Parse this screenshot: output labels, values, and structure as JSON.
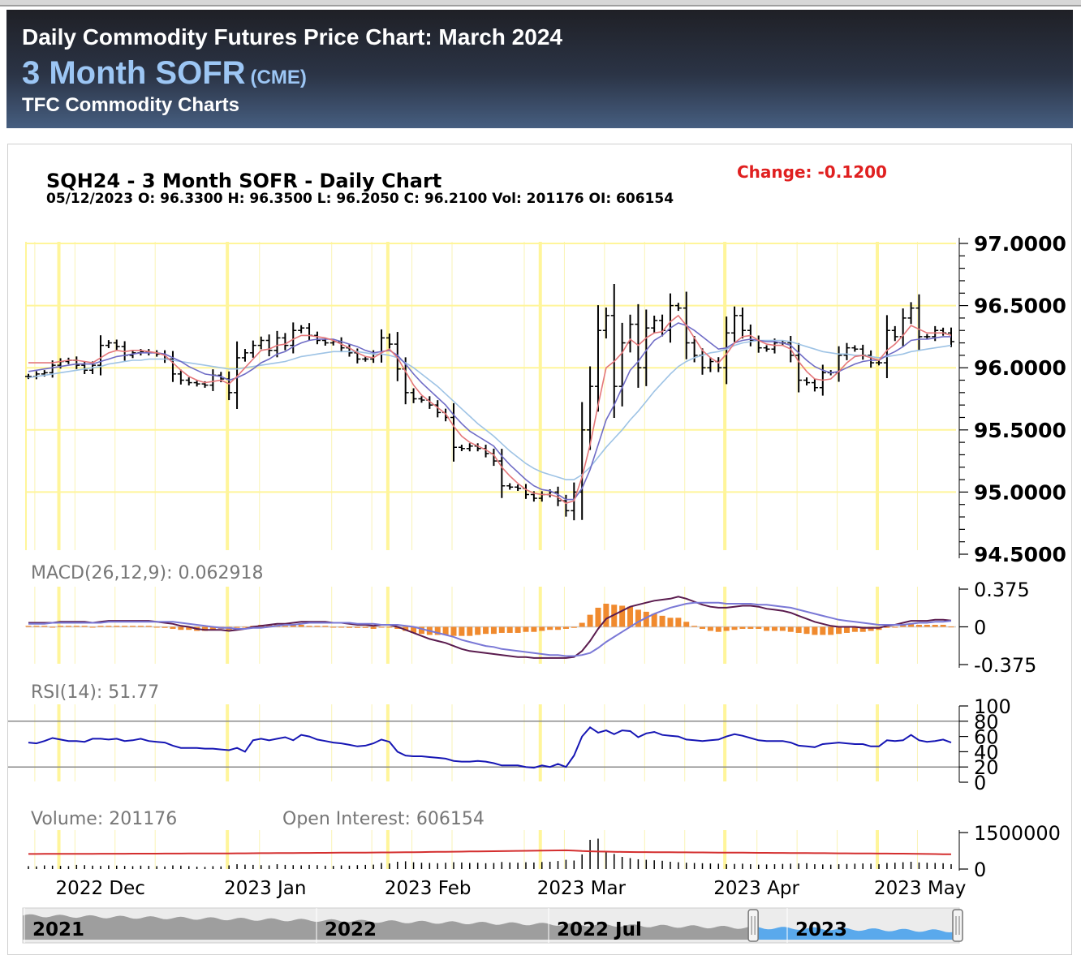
{
  "header": {
    "title": "Daily Commodity Futures Price Chart: March 2024",
    "contract": "3 Month SOFR",
    "exchange": "(CME)",
    "brand": "TFC Commodity Charts"
  },
  "chart_info": {
    "title": "SQH24 - 3 Month SOFR - Daily Chart",
    "change": "Change: -0.1200",
    "ohlc_line": "05/12/2023 O: 96.3300 H: 96.3500 L: 96.2050 C: 96.2100 Vol: 201176 OI: 606154"
  },
  "colors": {
    "bars": "#000000",
    "ma_fast": "#e4777a",
    "ma_mid": "#6f6cc6",
    "ma_slow": "#9ec3e5",
    "macd_line": "#5a1b4e",
    "signal_line": "#7a78d6",
    "histogram": "#f08a2e",
    "rsi_line": "#1616b4",
    "grid_major": "#fff59a",
    "change": "#e02020",
    "navigator_fill": "#9e9e9e",
    "navigator_selected": "#5aa9ec"
  },
  "chart_data": {
    "type": "bar",
    "dates": [
      "2022-11-25",
      "2022-11-28",
      "2022-11-29",
      "2022-11-30",
      "2022-12-01",
      "2022-12-02",
      "2022-12-05",
      "2022-12-06",
      "2022-12-07",
      "2022-12-08",
      "2022-12-09",
      "2022-12-12",
      "2022-12-13",
      "2022-12-14",
      "2022-12-15",
      "2022-12-16",
      "2022-12-19",
      "2022-12-20",
      "2022-12-21",
      "2022-12-22",
      "2022-12-23",
      "2022-12-27",
      "2022-12-28",
      "2022-12-29",
      "2022-12-30",
      "2023-01-03",
      "2023-01-04",
      "2023-01-05",
      "2023-01-06",
      "2023-01-09",
      "2023-01-10",
      "2023-01-11",
      "2023-01-12",
      "2023-01-13",
      "2023-01-17",
      "2023-01-18",
      "2023-01-19",
      "2023-01-20",
      "2023-01-23",
      "2023-01-24",
      "2023-01-25",
      "2023-01-26",
      "2023-01-27",
      "2023-01-30",
      "2023-01-31",
      "2023-02-01",
      "2023-02-02",
      "2023-02-03",
      "2023-02-06",
      "2023-02-07",
      "2023-02-08",
      "2023-02-09",
      "2023-02-10",
      "2023-02-13",
      "2023-02-14",
      "2023-02-15",
      "2023-02-16",
      "2023-02-17",
      "2023-02-21",
      "2023-02-22",
      "2023-02-23",
      "2023-02-24",
      "2023-02-27",
      "2023-02-28",
      "2023-03-01",
      "2023-03-02",
      "2023-03-03",
      "2023-03-06",
      "2023-03-07",
      "2023-03-08",
      "2023-03-09",
      "2023-03-10",
      "2023-03-13",
      "2023-03-14",
      "2023-03-15",
      "2023-03-16",
      "2023-03-17",
      "2023-03-20",
      "2023-03-21",
      "2023-03-22",
      "2023-03-23",
      "2023-03-24",
      "2023-03-27",
      "2023-03-28",
      "2023-03-29",
      "2023-03-30",
      "2023-03-31",
      "2023-04-03",
      "2023-04-04",
      "2023-04-05",
      "2023-04-06",
      "2023-04-10",
      "2023-04-11",
      "2023-04-12",
      "2023-04-13",
      "2023-04-14",
      "2023-04-17",
      "2023-04-18",
      "2023-04-19",
      "2023-04-20",
      "2023-04-21",
      "2023-04-24",
      "2023-04-25",
      "2023-04-26",
      "2023-04-27",
      "2023-04-28",
      "2023-05-01",
      "2023-05-02",
      "2023-05-03",
      "2023-05-04",
      "2023-05-05",
      "2023-05-08",
      "2023-05-09",
      "2023-05-10",
      "2023-05-11",
      "2023-05-12"
    ],
    "close": [
      95.93,
      95.95,
      95.96,
      96.02,
      96.05,
      96.06,
      96.02,
      95.98,
      96.02,
      96.18,
      96.2,
      96.17,
      96.1,
      96.12,
      96.13,
      96.12,
      96.11,
      96.07,
      95.95,
      95.9,
      95.88,
      95.87,
      95.86,
      95.94,
      95.91,
      95.8,
      96.08,
      96.12,
      96.18,
      96.22,
      96.14,
      96.24,
      96.18,
      96.3,
      96.32,
      96.26,
      96.22,
      96.2,
      96.21,
      96.16,
      96.12,
      96.07,
      96.07,
      96.11,
      96.24,
      96.19,
      95.99,
      95.8,
      95.75,
      95.74,
      95.7,
      95.64,
      95.6,
      95.36,
      95.35,
      95.37,
      95.35,
      95.31,
      95.25,
      95.05,
      95.04,
      95.03,
      94.98,
      94.95,
      94.98,
      95.0,
      94.93,
      94.85,
      95.0,
      95.5,
      95.85,
      96.3,
      96.42,
      95.85,
      96.2,
      96.35,
      96.0,
      96.32,
      96.38,
      96.3,
      96.5,
      96.48,
      96.2,
      96.1,
      96.0,
      96.05,
      96.0,
      96.28,
      96.42,
      96.3,
      96.22,
      96.16,
      96.15,
      96.2,
      96.2,
      96.1,
      95.9,
      95.88,
      95.84,
      95.96,
      95.96,
      96.1,
      96.16,
      96.15,
      96.1,
      96.04,
      96.04,
      96.3,
      96.25,
      96.4,
      96.48,
      96.25,
      96.25,
      96.3,
      96.28,
      96.21
    ],
    "ma_fast": [
      96.04,
      96.04,
      96.04,
      96.04,
      96.05,
      96.06,
      96.06,
      96.05,
      96.04,
      96.08,
      96.12,
      96.14,
      96.13,
      96.14,
      96.14,
      96.13,
      96.12,
      96.1,
      96.04,
      95.98,
      95.93,
      95.9,
      95.88,
      95.89,
      95.9,
      95.87,
      95.93,
      96.0,
      96.07,
      96.14,
      96.15,
      96.18,
      96.19,
      96.23,
      96.26,
      96.26,
      96.25,
      96.24,
      96.22,
      96.19,
      96.16,
      96.12,
      96.09,
      96.08,
      96.12,
      96.15,
      96.08,
      95.97,
      95.86,
      95.78,
      95.73,
      95.68,
      95.63,
      95.53,
      95.45,
      95.4,
      95.37,
      95.34,
      95.3,
      95.2,
      95.13,
      95.07,
      95.02,
      94.99,
      94.98,
      94.98,
      94.96,
      94.91,
      94.93,
      95.12,
      95.38,
      95.7,
      96.0,
      96.05,
      96.12,
      96.23,
      96.18,
      96.24,
      96.28,
      96.29,
      96.37,
      96.42,
      96.34,
      96.24,
      96.14,
      96.08,
      96.04,
      96.11,
      96.2,
      96.25,
      96.26,
      96.22,
      96.19,
      96.18,
      96.18,
      96.15,
      96.05,
      95.97,
      95.91,
      95.9,
      95.91,
      95.97,
      96.04,
      96.09,
      96.1,
      96.08,
      96.06,
      96.14,
      96.19,
      96.26,
      96.34,
      96.31,
      96.28,
      96.28,
      96.28,
      96.26
    ],
    "ma_mid": [
      95.97,
      95.98,
      95.99,
      96.0,
      96.01,
      96.02,
      96.03,
      96.03,
      96.03,
      96.05,
      96.07,
      96.09,
      96.1,
      96.11,
      96.12,
      96.12,
      96.12,
      96.11,
      96.08,
      96.05,
      96.01,
      95.98,
      95.95,
      95.94,
      95.93,
      95.9,
      95.92,
      95.95,
      95.99,
      96.04,
      96.07,
      96.11,
      96.13,
      96.17,
      96.2,
      96.22,
      96.23,
      96.23,
      96.23,
      96.21,
      96.19,
      96.17,
      96.14,
      96.12,
      96.13,
      96.14,
      96.1,
      96.03,
      95.95,
      95.88,
      95.82,
      95.76,
      95.7,
      95.62,
      95.55,
      95.49,
      95.45,
      95.41,
      95.37,
      95.29,
      95.22,
      95.16,
      95.1,
      95.05,
      95.02,
      95.01,
      94.98,
      94.94,
      94.94,
      95.03,
      95.18,
      95.38,
      95.58,
      95.7,
      95.84,
      95.98,
      96.05,
      96.14,
      96.22,
      96.26,
      96.32,
      96.36,
      96.34,
      96.3,
      96.25,
      96.2,
      96.15,
      96.16,
      96.2,
      96.22,
      96.23,
      96.22,
      96.21,
      96.21,
      96.2,
      96.18,
      96.12,
      96.06,
      96.01,
      95.98,
      95.96,
      95.97,
      96.0,
      96.03,
      96.05,
      96.06,
      96.06,
      96.1,
      96.13,
      96.17,
      96.22,
      96.23,
      96.23,
      96.24,
      96.25,
      96.25
    ],
    "ma_slow": [
      95.92,
      95.93,
      95.94,
      95.95,
      95.96,
      95.97,
      95.98,
      95.99,
      96.0,
      96.01,
      96.03,
      96.04,
      96.05,
      96.06,
      96.06,
      96.07,
      96.07,
      96.07,
      96.06,
      96.05,
      96.04,
      96.03,
      96.02,
      96.01,
      96.0,
      95.99,
      95.99,
      96.0,
      96.01,
      96.02,
      96.03,
      96.04,
      96.05,
      96.07,
      96.09,
      96.1,
      96.11,
      96.12,
      96.13,
      96.13,
      96.13,
      96.13,
      96.12,
      96.11,
      96.11,
      96.1,
      96.08,
      96.04,
      96.0,
      95.95,
      95.9,
      95.85,
      95.79,
      95.73,
      95.67,
      95.61,
      95.55,
      95.5,
      95.45,
      95.39,
      95.33,
      95.28,
      95.23,
      95.19,
      95.16,
      95.14,
      95.12,
      95.1,
      95.1,
      95.14,
      95.2,
      95.28,
      95.36,
      95.43,
      95.5,
      95.58,
      95.65,
      95.73,
      95.81,
      95.88,
      95.95,
      96.01,
      96.05,
      96.08,
      96.1,
      96.12,
      96.13,
      96.15,
      96.18,
      96.2,
      96.21,
      96.22,
      96.22,
      96.22,
      96.22,
      96.21,
      96.19,
      96.17,
      96.15,
      96.13,
      96.12,
      96.11,
      96.11,
      96.1,
      96.1,
      96.09,
      96.08,
      96.09,
      96.1,
      96.11,
      96.13,
      96.14,
      96.15,
      96.16,
      96.17,
      96.18
    ],
    "price_axis": {
      "min": 94.5,
      "max": 97.0,
      "ticks": [
        "97.0000",
        "96.5000",
        "96.0000",
        "95.5000",
        "95.0000",
        "94.5000"
      ]
    },
    "x_labels": [
      "2022 Dec",
      "2023 Jan",
      "2023 Feb",
      "2023 Mar",
      "2023 Apr",
      "2023 May"
    ],
    "macd": {
      "label": "MACD(26,12,9): 0.062918",
      "ticks": [
        "0.375",
        "0",
        "-0.375"
      ],
      "range": [
        -0.375,
        0.375
      ],
      "macd": [
        0.04,
        0.04,
        0.04,
        0.04,
        0.05,
        0.05,
        0.05,
        0.05,
        0.04,
        0.05,
        0.06,
        0.06,
        0.06,
        0.06,
        0.06,
        0.06,
        0.05,
        0.04,
        0.03,
        0.01,
        0.0,
        -0.02,
        -0.03,
        -0.03,
        -0.03,
        -0.04,
        -0.03,
        -0.02,
        0.0,
        0.01,
        0.02,
        0.03,
        0.03,
        0.04,
        0.05,
        0.05,
        0.05,
        0.05,
        0.04,
        0.04,
        0.03,
        0.02,
        0.02,
        0.01,
        0.02,
        0.02,
        0.0,
        -0.03,
        -0.06,
        -0.09,
        -0.12,
        -0.14,
        -0.16,
        -0.19,
        -0.22,
        -0.24,
        -0.25,
        -0.26,
        -0.27,
        -0.28,
        -0.29,
        -0.3,
        -0.3,
        -0.31,
        -0.31,
        -0.31,
        -0.31,
        -0.31,
        -0.3,
        -0.24,
        -0.14,
        -0.02,
        0.08,
        0.12,
        0.16,
        0.2,
        0.22,
        0.24,
        0.26,
        0.27,
        0.28,
        0.3,
        0.28,
        0.25,
        0.22,
        0.2,
        0.19,
        0.19,
        0.2,
        0.21,
        0.21,
        0.2,
        0.18,
        0.17,
        0.16,
        0.14,
        0.11,
        0.08,
        0.05,
        0.03,
        0.01,
        0.0,
        0.0,
        0.0,
        -0.01,
        -0.01,
        -0.01,
        0.01,
        0.02,
        0.04,
        0.06,
        0.06,
        0.06,
        0.07,
        0.07,
        0.063
      ],
      "signal": [
        0.03,
        0.03,
        0.03,
        0.04,
        0.04,
        0.04,
        0.04,
        0.04,
        0.04,
        0.04,
        0.05,
        0.05,
        0.05,
        0.05,
        0.05,
        0.05,
        0.05,
        0.05,
        0.05,
        0.04,
        0.03,
        0.02,
        0.01,
        0.0,
        -0.01,
        -0.01,
        -0.02,
        -0.02,
        -0.01,
        -0.01,
        0.0,
        0.01,
        0.02,
        0.02,
        0.03,
        0.04,
        0.04,
        0.04,
        0.04,
        0.04,
        0.04,
        0.03,
        0.03,
        0.03,
        0.02,
        0.02,
        0.02,
        0.01,
        0.0,
        -0.02,
        -0.04,
        -0.06,
        -0.08,
        -0.1,
        -0.13,
        -0.15,
        -0.17,
        -0.19,
        -0.2,
        -0.22,
        -0.23,
        -0.24,
        -0.25,
        -0.26,
        -0.27,
        -0.28,
        -0.28,
        -0.29,
        -0.29,
        -0.28,
        -0.26,
        -0.21,
        -0.15,
        -0.1,
        -0.05,
        0.0,
        0.05,
        0.09,
        0.13,
        0.16,
        0.19,
        0.21,
        0.23,
        0.24,
        0.24,
        0.24,
        0.24,
        0.23,
        0.23,
        0.23,
        0.23,
        0.22,
        0.22,
        0.21,
        0.2,
        0.19,
        0.17,
        0.15,
        0.13,
        0.11,
        0.09,
        0.07,
        0.06,
        0.05,
        0.04,
        0.03,
        0.02,
        0.02,
        0.02,
        0.02,
        0.03,
        0.04,
        0.04,
        0.05,
        0.05,
        0.06
      ]
    },
    "rsi": {
      "label": "RSI(14): 51.77",
      "ticks": [
        "100",
        "80",
        "60",
        "40",
        "20",
        "0"
      ],
      "levels": [
        80,
        20
      ],
      "values": [
        52,
        51,
        54,
        58,
        56,
        54,
        54,
        53,
        57,
        57,
        56,
        57,
        54,
        55,
        57,
        54,
        53,
        52,
        48,
        45,
        45,
        45,
        44,
        44,
        43,
        42,
        45,
        40,
        55,
        57,
        55,
        57,
        59,
        55,
        62,
        60,
        56,
        54,
        52,
        51,
        49,
        47,
        48,
        51,
        56,
        53,
        40,
        35,
        34,
        34,
        33,
        32,
        31,
        28,
        27,
        27,
        28,
        27,
        25,
        22,
        22,
        22,
        20,
        19,
        22,
        20,
        24,
        20,
        35,
        60,
        72,
        65,
        68,
        63,
        68,
        67,
        59,
        64,
        66,
        62,
        61,
        60,
        56,
        55,
        54,
        55,
        56,
        60,
        63,
        61,
        58,
        55,
        54,
        54,
        54,
        52,
        48,
        47,
        46,
        50,
        51,
        52,
        51,
        50,
        50,
        47,
        47,
        55,
        54,
        55,
        62,
        55,
        53,
        54,
        56,
        52
      ]
    },
    "volume_panel": {
      "volume_label": "Volume: 201176",
      "oi_label": "Open Interest: 606154",
      "ticks": [
        "1500000",
        "0"
      ],
      "max": 1500000,
      "volume": [
        120000,
        110000,
        150000,
        140000,
        130000,
        120000,
        170000,
        160000,
        140000,
        130000,
        150000,
        140000,
        130000,
        120000,
        140000,
        130000,
        120000,
        110000,
        150000,
        140000,
        120000,
        100000,
        90000,
        120000,
        110000,
        150000,
        200000,
        180000,
        170000,
        160000,
        150000,
        200000,
        170000,
        160000,
        150000,
        170000,
        160000,
        140000,
        130000,
        150000,
        140000,
        160000,
        170000,
        180000,
        250000,
        230000,
        300000,
        320000,
        280000,
        260000,
        250000,
        240000,
        260000,
        280000,
        270000,
        250000,
        260000,
        240000,
        250000,
        290000,
        270000,
        260000,
        280000,
        270000,
        290000,
        300000,
        330000,
        380000,
        350000,
        600000,
        1200000,
        1250000,
        700000,
        620000,
        500000,
        450000,
        400000,
        380000,
        360000,
        340000,
        300000,
        280000,
        260000,
        250000,
        240000,
        230000,
        220000,
        200000,
        210000,
        220000,
        200000,
        180000,
        190000,
        200000,
        210000,
        220000,
        230000,
        240000,
        200000,
        190000,
        180000,
        200000,
        210000,
        220000,
        230000,
        220000,
        200000,
        250000,
        260000,
        280000,
        300000,
        270000,
        260000,
        250000,
        240000,
        201176
      ],
      "open_interest": [
        620000,
        621000,
        622000,
        623000,
        624000,
        625000,
        626000,
        627000,
        628000,
        629000,
        630000,
        630000,
        631000,
        632000,
        633000,
        634000,
        635000,
        636000,
        637000,
        638000,
        639000,
        640000,
        641000,
        642000,
        643000,
        644000,
        646000,
        648000,
        650000,
        652000,
        654000,
        656000,
        658000,
        660000,
        662000,
        664000,
        666000,
        668000,
        670000,
        672000,
        674000,
        676000,
        678000,
        680000,
        682000,
        684000,
        686000,
        690000,
        694000,
        698000,
        702000,
        706000,
        710000,
        714000,
        718000,
        722000,
        726000,
        730000,
        734000,
        738000,
        742000,
        746000,
        750000,
        754000,
        758000,
        762000,
        766000,
        770000,
        760000,
        740000,
        730000,
        720000,
        715000,
        710000,
        705000,
        700000,
        698000,
        696000,
        694000,
        692000,
        690000,
        688000,
        686000,
        684000,
        682000,
        680000,
        678000,
        676000,
        674000,
        672000,
        670000,
        668000,
        666000,
        664000,
        662000,
        660000,
        658000,
        656000,
        654000,
        652000,
        650000,
        648000,
        646000,
        644000,
        642000,
        640000,
        638000,
        636000,
        634000,
        632000,
        630000,
        625000,
        620000,
        615000,
        610000,
        606154
      ]
    },
    "navigator": {
      "labels": [
        "2021",
        "2022",
        "2022 Jul",
        "2023"
      ]
    }
  }
}
